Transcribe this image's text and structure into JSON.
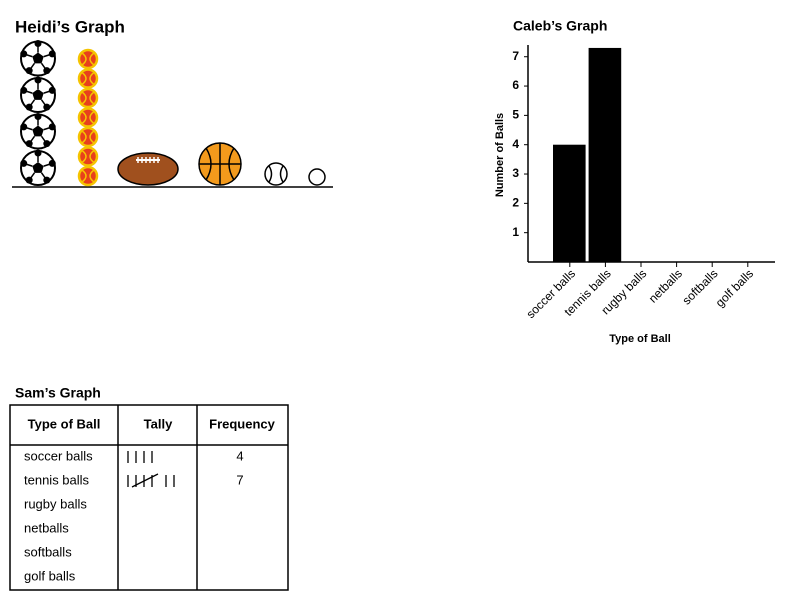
{
  "chart_data": [
    {
      "type": "pictograph",
      "title": "Heidi’s Graph",
      "values": [
        4,
        7,
        1,
        1,
        1,
        1
      ]
    },
    {
      "type": "bar",
      "title": "Caleb’s Graph",
      "x_label": "Type of Ball",
      "y_label": "Number of Balls",
      "categories": [
        "soccer balls",
        "tennis balls",
        "rugby balls",
        "netballs",
        "softballs",
        "golf balls"
      ],
      "values": [
        4,
        7.3,
        null,
        null,
        null,
        null
      ],
      "color": "#000000",
      "ylim": [
        0,
        7.4
      ],
      "yticks": [
        1,
        2,
        3,
        4,
        5,
        6,
        7
      ]
    }
  ],
  "table": {
    "title": "Sam’s Graph",
    "header": [
      "Type of Ball",
      "Tally",
      "Frequency"
    ],
    "rows": [
      [
        "soccer balls",
        4
      ],
      [
        "tennis balls",
        7
      ],
      [
        "rugby balls",
        null
      ],
      [
        "netballs",
        null
      ],
      [
        "softballs",
        null
      ],
      [
        "golf balls",
        null
      ]
    ]
  }
}
